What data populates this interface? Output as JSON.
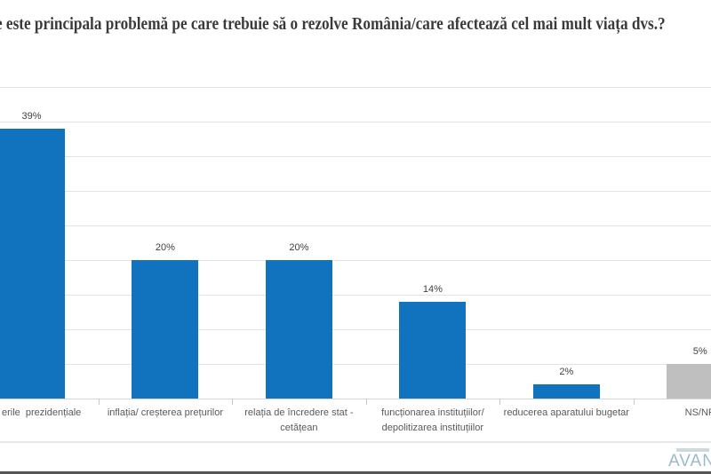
{
  "chart_data": {
    "type": "bar",
    "title": "e este principala problemă pe care trebuie să o rezolve România/care afectează cel mai mult viața dvs.?",
    "categories": [
      "erile  prezidențiale",
      "inflația/ creșterea prețurilor",
      "relația de încredere stat -\ncetățean",
      "funcționarea instituțiilor/\ndepolitizarea instituțiilor",
      "reducerea aparatului bugetar",
      "NS/NR"
    ],
    "values": [
      39,
      20,
      20,
      14,
      2,
      5
    ],
    "data_labels": [
      "39%",
      "20%",
      "20%",
      "14%",
      "2%",
      "5%"
    ],
    "bar_colors": [
      "#1172BD",
      "#1172BD",
      "#1172BD",
      "#1172BD",
      "#1172BD",
      "#BFBFBF"
    ],
    "xlabel": "",
    "ylabel": "",
    "ylim": [
      0,
      45
    ],
    "grid_step": 5,
    "grid": "horizontal",
    "legend": "none",
    "notes": "title, first bar label and last bar are cut off by the image edges"
  },
  "colors": {
    "bar_blue": "#1172BD",
    "bar_gray": "#BFBFBF",
    "gridline": "#E3E3E3",
    "axis_line": "#D6D6D6",
    "value_label": "#404040",
    "category_label": "#595959",
    "title_text": "#3A3A3A",
    "footer_strip": "#545454",
    "logo_text": "#9CBAC8"
  },
  "logo": {
    "text": "AVAN"
  }
}
